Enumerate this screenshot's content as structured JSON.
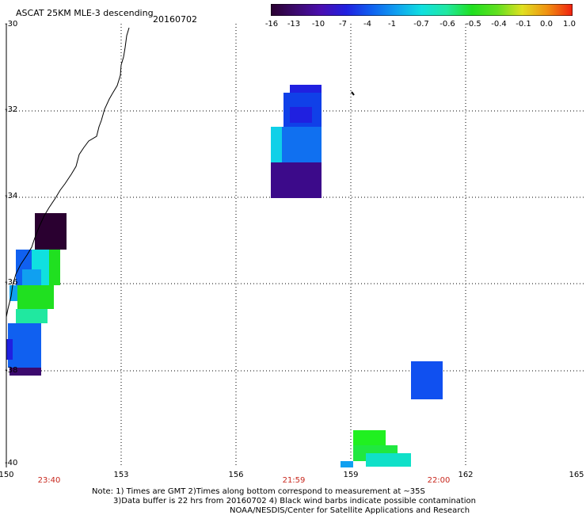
{
  "header": {
    "title": "ASCAT 25KM MLE-3 descending",
    "date": "20160702"
  },
  "colorbar": {
    "labels": [
      "-16",
      "-13",
      "-10",
      "-7",
      "-4",
      "-1",
      "-0.7",
      "-0.6",
      "-0.5",
      "-0.4",
      "-0.1",
      "0.0",
      "1.0"
    ],
    "colors": [
      "#2a0030",
      "#3c0a6e",
      "#4a0eb0",
      "#2020e0",
      "#1060f0",
      "#10a0f0",
      "#10e0e0",
      "#20e8a0",
      "#20e020",
      "#60e020",
      "#e0e020",
      "#f09010",
      "#f02010"
    ]
  },
  "axes": {
    "lat_labels": [
      "-30",
      "-32",
      "-34",
      "-36",
      "-38",
      "-40"
    ],
    "lon_labels": [
      "150",
      "153",
      "156",
      "159",
      "162",
      "165"
    ],
    "time_labels": [
      "23:40",
      "21:59",
      "22:00"
    ]
  },
  "notes": {
    "line1": "Note: 1) Times are GMT 2)Times along bottom correspond to measurement at ~35S",
    "line2": "3)Data buffer is 22 hrs from 20160702 4) Black wind barbs indicate possible contamination",
    "line3": "NOAA/NESDIS/Center for Satellite Applications and Research"
  }
}
